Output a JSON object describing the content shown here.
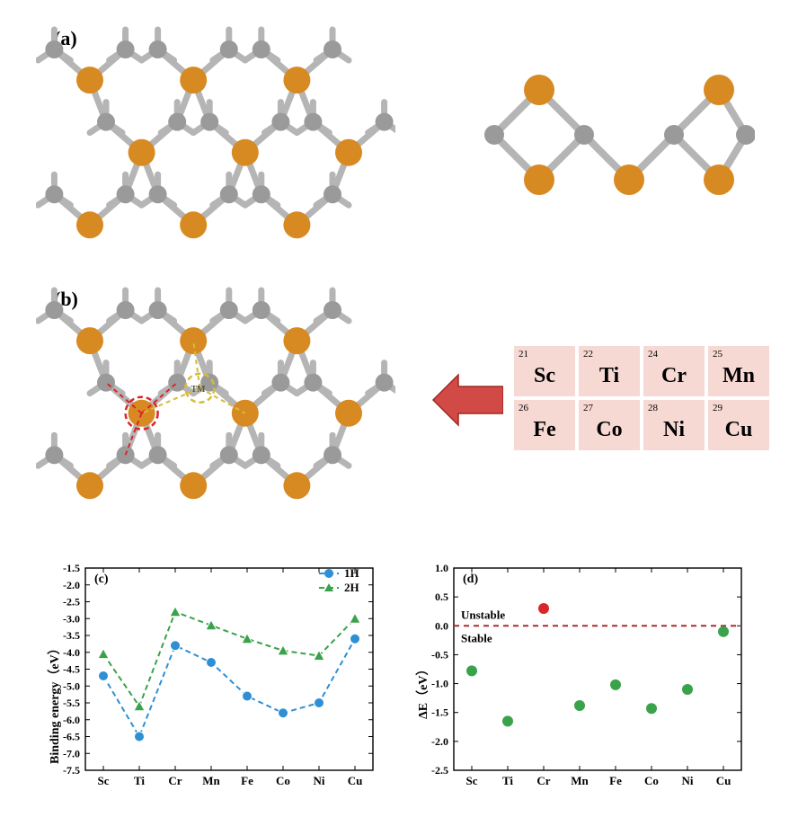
{
  "labels": {
    "a": "(a)",
    "b": "(b)",
    "c": "(c)",
    "d": "(d)"
  },
  "colors": {
    "atom_orange": "#d88a22",
    "atom_gray": "#9a9a9a",
    "bond": "#b5b5b5",
    "highlight_red": "#d8262b",
    "highlight_yellow": "#d6bb3a",
    "arrow": "#d24a45",
    "pt_bg": "#f7d9d4",
    "series_1H": "#2e8fd4",
    "series_2H": "#3aa24a",
    "unstable_pt": "#d8262b",
    "stable_pt": "#3aa24a",
    "zero_line": "#b02a2d",
    "axis": "#000000"
  },
  "periodic": [
    {
      "num": "21",
      "sym": "Sc"
    },
    {
      "num": "22",
      "sym": "Ti"
    },
    {
      "num": "24",
      "sym": "Cr"
    },
    {
      "num": "25",
      "sym": "Mn"
    },
    {
      "num": "26",
      "sym": "Fe"
    },
    {
      "num": "27",
      "sym": "Co"
    },
    {
      "num": "28",
      "sym": "Ni"
    },
    {
      "num": "29",
      "sym": "Cu"
    }
  ],
  "chart_c": {
    "ylabel": "Binding energy（eV）",
    "ylim": [
      -7.5,
      -1.5
    ],
    "ytick_step": 0.5,
    "categories": [
      "Sc",
      "Ti",
      "Cr",
      "Mn",
      "Fe",
      "Co",
      "Ni",
      "Cu"
    ],
    "series": [
      {
        "name": "1H",
        "color": "#2e8fd4",
        "marker": "circle",
        "dash": "6,4",
        "values": [
          -4.7,
          -6.5,
          -3.8,
          -4.3,
          -5.3,
          -5.8,
          -5.5,
          -3.6
        ]
      },
      {
        "name": "2H",
        "color": "#3aa24a",
        "marker": "triangle",
        "dash": "6,4",
        "values": [
          -4.05,
          -5.6,
          -2.8,
          -3.2,
          -3.6,
          -3.95,
          -4.1,
          -3.0
        ]
      }
    ],
    "legend_pos": "top-right"
  },
  "chart_d": {
    "ylabel": "ΔE（eV）",
    "ylim": [
      -2.5,
      1.0
    ],
    "ytick_step": 0.5,
    "categories": [
      "Sc",
      "Ti",
      "Cr",
      "Mn",
      "Fe",
      "Co",
      "Ni",
      "Cu"
    ],
    "annotations": {
      "unstable": "Unstable",
      "stable": "Stable"
    },
    "zero_line": {
      "color": "#b02a2d",
      "dash": "6,5"
    },
    "points": [
      {
        "x": "Sc",
        "y": -0.78,
        "color": "#3aa24a"
      },
      {
        "x": "Ti",
        "y": -1.65,
        "color": "#3aa24a"
      },
      {
        "x": "Cr",
        "y": 0.3,
        "color": "#d8262b"
      },
      {
        "x": "Mn",
        "y": -1.38,
        "color": "#3aa24a"
      },
      {
        "x": "Fe",
        "y": -1.02,
        "color": "#3aa24a"
      },
      {
        "x": "Co",
        "y": -1.43,
        "color": "#3aa24a"
      },
      {
        "x": "Ni",
        "y": -1.1,
        "color": "#3aa24a"
      },
      {
        "x": "Cu",
        "y": -0.1,
        "color": "#3aa24a"
      }
    ]
  }
}
